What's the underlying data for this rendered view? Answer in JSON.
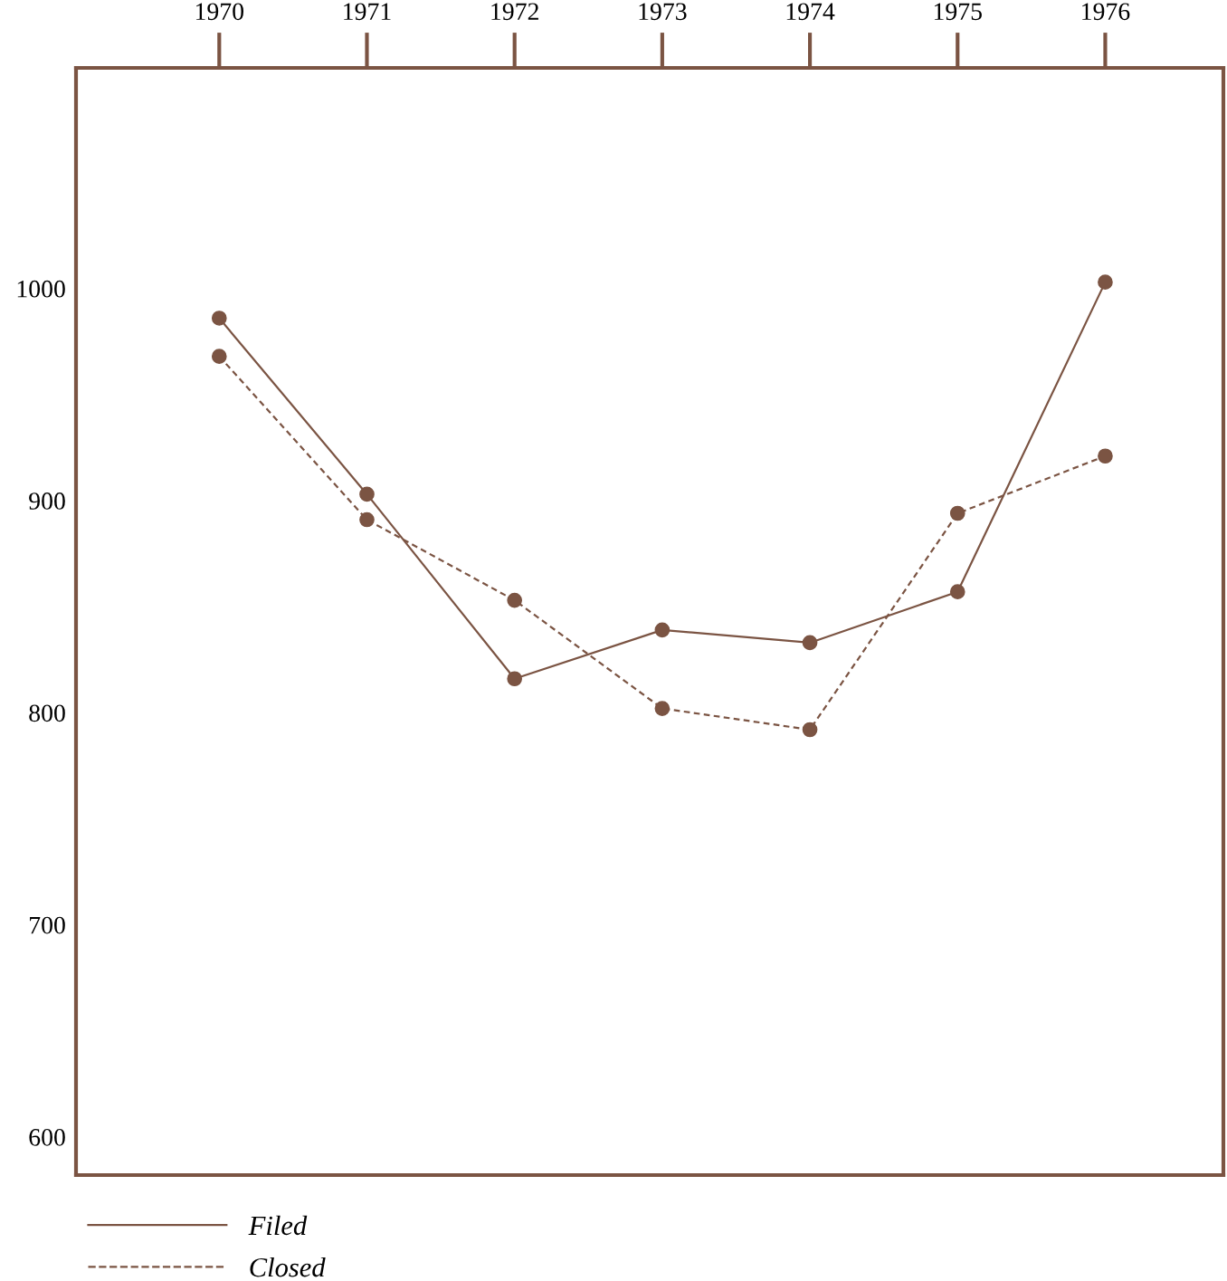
{
  "chart_data": {
    "type": "line",
    "x": [
      1970,
      1971,
      1972,
      1973,
      1974,
      1975,
      1976
    ],
    "series": [
      {
        "name": "Filed",
        "color": "#7b5443",
        "line_style": "solid",
        "values": [
          986,
          903,
          816,
          839,
          833,
          857,
          1003
        ]
      },
      {
        "name": "Closed",
        "color": "#7b5443",
        "line_style": "dashed",
        "values": [
          968,
          891,
          853,
          802,
          792,
          894,
          921
        ]
      }
    ],
    "xlim": [
      1969.03,
      1976.8
    ],
    "xticks": [
      1970,
      1971,
      1972,
      1973,
      1974,
      1975,
      1976
    ],
    "ylim": [
      582,
      1104
    ],
    "yticks": [
      600,
      700,
      800,
      900,
      1000
    ],
    "marker": "circle",
    "grid": false,
    "legend": "bottom left"
  }
}
